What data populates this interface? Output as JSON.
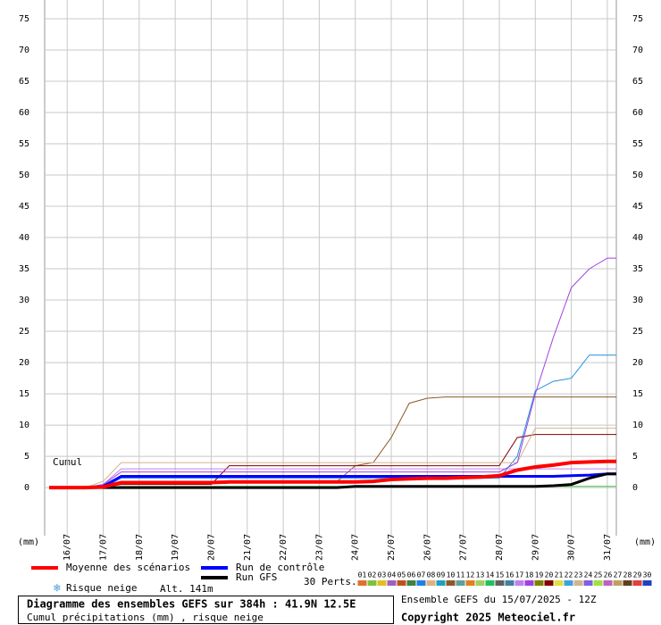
{
  "chart_data": {
    "type": "line",
    "title": "Diagramme des ensembles GEFS sur 384h : 41.9N 12.5E",
    "subtitle": "Cumul précipitations (mm) , risque neige",
    "run_info": "Ensemble GEFS du 15/07/2025 - 12Z",
    "copyright": "Copyright 2025 Meteociel.fr",
    "annotation": "Cumul",
    "y_unit": "(mm)",
    "snow_label": "Risque neige",
    "altitude": "Alt. 141m",
    "x": [
      0,
      12,
      24,
      36,
      48,
      60,
      72,
      84,
      96,
      108,
      120,
      132,
      144,
      156,
      168,
      180,
      192,
      204,
      216,
      228,
      240,
      252,
      264,
      276,
      288,
      300,
      312,
      324,
      336,
      348,
      360,
      372,
      378
    ],
    "xlim": [
      -3,
      378
    ],
    "xticks": [
      {
        "value": 12,
        "label": "16/07"
      },
      {
        "value": 36,
        "label": "17/07"
      },
      {
        "value": 60,
        "label": "18/07"
      },
      {
        "value": 84,
        "label": "19/07"
      },
      {
        "value": 108,
        "label": "20/07"
      },
      {
        "value": 132,
        "label": "21/07"
      },
      {
        "value": 156,
        "label": "22/07"
      },
      {
        "value": 180,
        "label": "23/07"
      },
      {
        "value": 204,
        "label": "24/07"
      },
      {
        "value": 228,
        "label": "25/07"
      },
      {
        "value": 252,
        "label": "26/07"
      },
      {
        "value": 276,
        "label": "27/07"
      },
      {
        "value": 300,
        "label": "28/07"
      },
      {
        "value": 324,
        "label": "29/07"
      },
      {
        "value": 348,
        "label": "30/07"
      },
      {
        "value": 372,
        "label": "31/07"
      }
    ],
    "ylim": [
      -7.7,
      78
    ],
    "yticks": [
      0,
      5,
      10,
      15,
      20,
      25,
      30,
      35,
      40,
      45,
      50,
      55,
      60,
      65,
      70,
      75
    ],
    "grid": true,
    "series": [
      {
        "color": "#2090e0",
        "values": [
          0,
          0,
          0,
          0,
          1.5,
          1.5,
          1.5,
          1.5,
          1.5,
          1.5,
          1.5,
          1.5,
          1.5,
          1.5,
          1.5,
          1.5,
          1.5,
          1.5,
          1.5,
          1.5,
          1.5,
          1.5,
          1.5,
          1.5,
          1.5,
          1.5,
          5,
          15.5,
          17,
          17.5,
          21.2,
          21.2,
          21.2
        ]
      },
      {
        "color": "#8b5a2b",
        "values": [
          0,
          0,
          0,
          0,
          1,
          1,
          1,
          1,
          1,
          1,
          1,
          1,
          1,
          1,
          1,
          1,
          1,
          3.5,
          4,
          8,
          13.5,
          14.3,
          14.5,
          14.5,
          14.5,
          14.5,
          14.5,
          14.5,
          14.5,
          14.5,
          14.5,
          14.5,
          14.5
        ]
      },
      {
        "color": "#800000",
        "values": [
          0,
          0,
          0,
          0,
          0.5,
          0.5,
          0.5,
          0.5,
          0.5,
          0.5,
          3.5,
          3.5,
          3.5,
          3.5,
          3.5,
          3.5,
          3.5,
          3.5,
          3.5,
          3.5,
          3.5,
          3.5,
          3.5,
          3.5,
          3.5,
          3.5,
          8,
          8.5,
          8.5,
          8.5,
          8.5,
          8.5,
          8.5
        ]
      },
      {
        "color": "#d2b48c",
        "values": [
          0,
          0,
          0,
          1,
          4,
          4,
          4,
          4,
          4,
          4,
          4,
          4,
          4,
          4,
          4,
          4,
          4,
          4,
          4,
          4,
          4,
          4,
          4,
          4,
          4,
          4,
          4,
          9.5,
          9.5,
          9.5,
          9.5,
          9.5,
          9.5
        ]
      },
      {
        "color": "#c080f0",
        "values": [
          0,
          0,
          0,
          0.5,
          3,
          3,
          3,
          3,
          3,
          3,
          3,
          3,
          3,
          3,
          3,
          3,
          3,
          3,
          3,
          3,
          3,
          3,
          3,
          3,
          3,
          3,
          3,
          3,
          3,
          3,
          3,
          3,
          3
        ]
      },
      {
        "color": "#40c040",
        "values": [
          0,
          0,
          0,
          0,
          0.2,
          0.2,
          0.2,
          0.2,
          0.2,
          0.2,
          0.2,
          0.2,
          0.2,
          0.2,
          0.2,
          0.2,
          0.2,
          0.2,
          0.2,
          0.2,
          0.2,
          0.2,
          0.2,
          0.2,
          0.2,
          0.2,
          0.2,
          0.2,
          0.2,
          0.2,
          0.2,
          0.2,
          0.2
        ]
      },
      {
        "color": "#a040e0",
        "values": [
          0,
          0,
          0,
          0.5,
          2.5,
          2.5,
          2.5,
          2.5,
          2.5,
          2.5,
          2.5,
          2.5,
          2.5,
          2.5,
          2.5,
          2.5,
          2.5,
          2.5,
          2.5,
          2.5,
          2.5,
          2.5,
          2.5,
          2.5,
          2.5,
          2.5,
          4,
          15,
          24,
          32,
          35,
          36.7,
          36.7
        ]
      },
      {
        "name": "Run de contrôle",
        "color": "#0000ff",
        "values": [
          0,
          0,
          0,
          0.2,
          1.8,
          1.8,
          1.8,
          1.8,
          1.8,
          1.8,
          1.8,
          1.8,
          1.8,
          1.8,
          1.8,
          1.8,
          1.8,
          1.8,
          1.8,
          1.8,
          1.8,
          1.8,
          1.8,
          1.8,
          1.8,
          1.8,
          1.8,
          1.8,
          1.8,
          1.9,
          2.0,
          2.2,
          2.2
        ]
      },
      {
        "name": "Run GFS",
        "color": "#000000",
        "values": [
          0,
          0,
          0,
          0,
          0,
          0,
          0,
          0,
          0,
          0,
          0,
          0,
          0,
          0,
          0,
          0,
          0,
          0.2,
          0.2,
          0.2,
          0.2,
          0.2,
          0.2,
          0.2,
          0.2,
          0.2,
          0.2,
          0.2,
          0.3,
          0.5,
          1.5,
          2.2,
          2.2
        ]
      },
      {
        "name": "Moyenne des scénarios",
        "color": "#ff0000",
        "values": [
          0,
          0,
          0,
          0.1,
          0.8,
          0.8,
          0.8,
          0.8,
          0.8,
          0.8,
          0.9,
          0.9,
          0.9,
          0.9,
          0.9,
          0.9,
          0.9,
          0.9,
          1.0,
          1.3,
          1.4,
          1.5,
          1.5,
          1.6,
          1.7,
          1.9,
          2.8,
          3.3,
          3.6,
          4.0,
          4.1,
          4.2,
          4.2
        ]
      }
    ],
    "perturbations": {
      "label": "30 Perts.",
      "names": [
        "01",
        "02",
        "03",
        "04",
        "05",
        "06",
        "07",
        "08",
        "09",
        "10",
        "11",
        "12",
        "13",
        "14",
        "15",
        "16",
        "17",
        "18",
        "19",
        "20",
        "21",
        "22",
        "23",
        "24",
        "25",
        "26",
        "27",
        "28",
        "29",
        "30"
      ],
      "colors": [
        "#e07030",
        "#80c040",
        "#e0c020",
        "#a060c0",
        "#c05020",
        "#408040",
        "#2080e0",
        "#e0b080",
        "#20a0c0",
        "#8b5a2b",
        "#60a0a0",
        "#e08020",
        "#a0d060",
        "#20c060",
        "#606060",
        "#4080a0",
        "#c080f0",
        "#a040e0",
        "#808000",
        "#800000",
        "#e0e040",
        "#40a0e0",
        "#d2b48c",
        "#8060e0",
        "#a0e040",
        "#c060c0",
        "#c0a060",
        "#604020",
        "#e04040",
        "#2040c0"
      ]
    }
  }
}
